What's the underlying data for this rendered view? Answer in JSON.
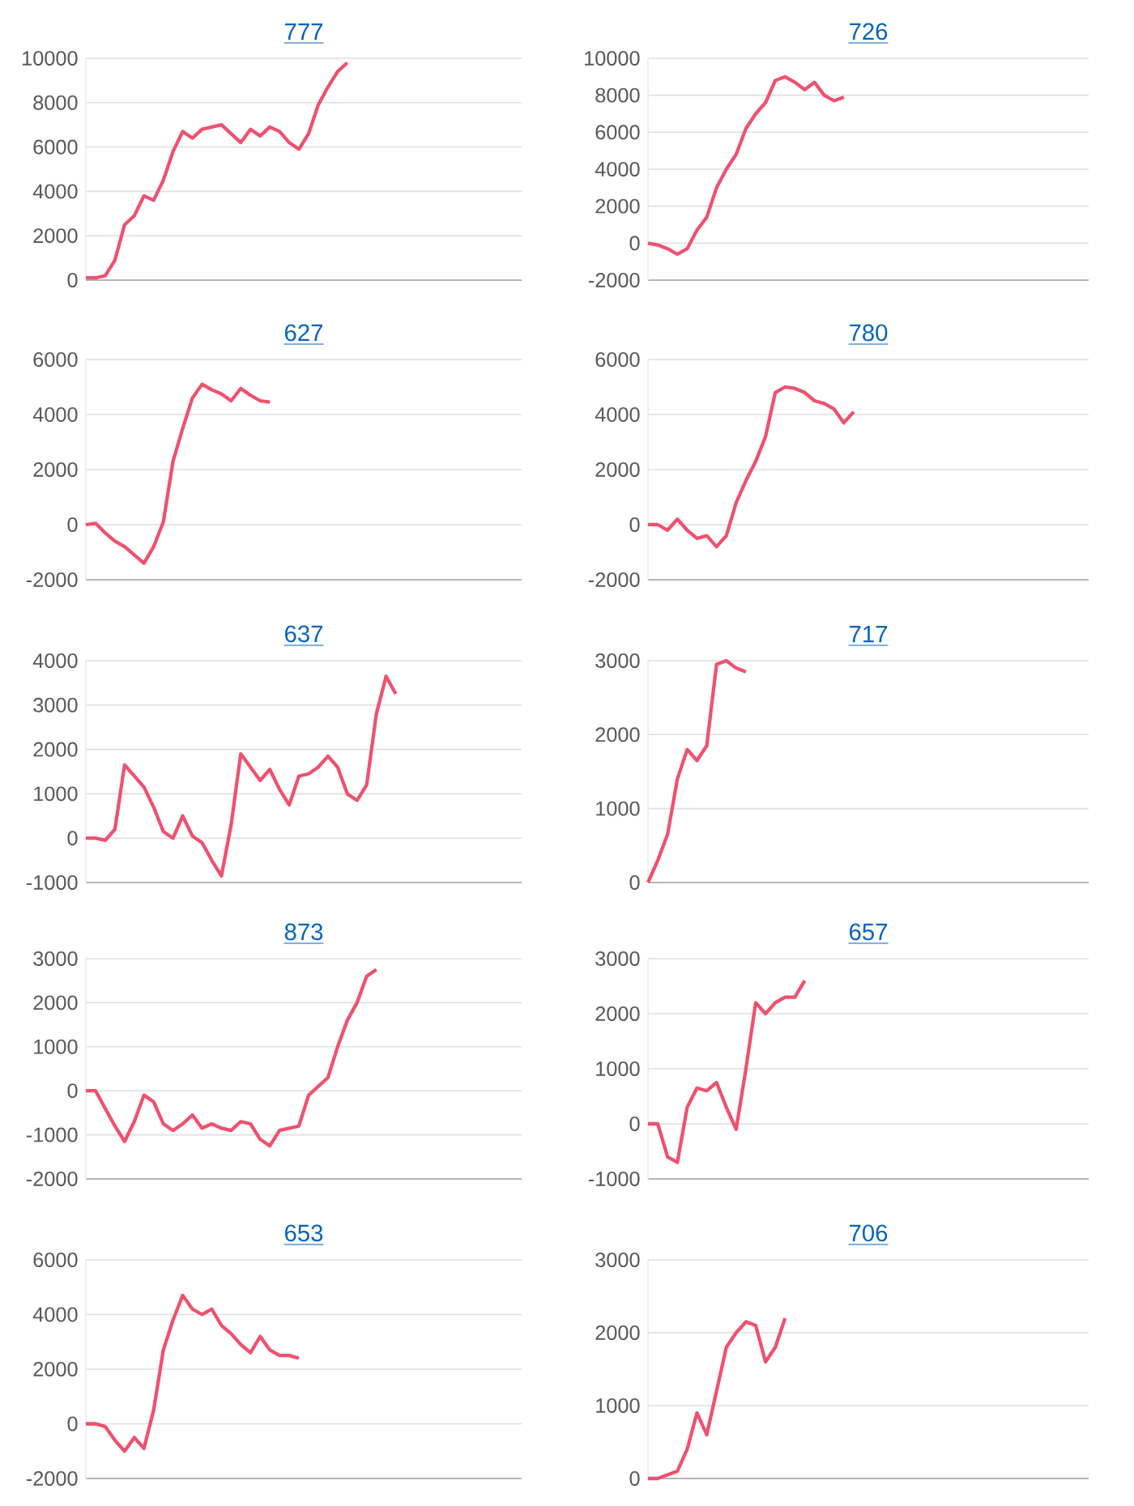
{
  "chart_data": [
    {
      "type": "line",
      "title": "777",
      "color": "#f0506e",
      "grid": "y",
      "tick_labels": "y",
      "ylim": [
        0,
        10000
      ],
      "yticks": [
        0,
        2000,
        4000,
        6000,
        8000,
        10000
      ],
      "categories": [
        null,
        null,
        null,
        null,
        null,
        null,
        null,
        null,
        null,
        null,
        null,
        null,
        null,
        null,
        null,
        null,
        null,
        null,
        null,
        null,
        null,
        null,
        null,
        null,
        null,
        null,
        null,
        null,
        null,
        null,
        null,
        null,
        null,
        null,
        null,
        null,
        null,
        null,
        null,
        null,
        null,
        null,
        null,
        null,
        null,
        null
      ],
      "values": [
        100,
        100,
        200,
        900,
        2500,
        2900,
        3800,
        3600,
        4500,
        5800,
        6700,
        6400,
        6800,
        6900,
        7000,
        6600,
        6200,
        6800,
        6500,
        6900,
        6700,
        6200,
        5900,
        6600,
        7900,
        8700,
        9400,
        9800,
        null,
        null,
        null,
        null,
        null,
        null,
        null,
        null,
        null,
        null,
        null,
        null,
        null,
        null,
        null,
        null,
        null,
        null
      ]
    },
    {
      "type": "line",
      "title": "726",
      "color": "#f0506e",
      "grid": "y",
      "tick_labels": "y",
      "ylim": [
        -2000,
        10000
      ],
      "yticks": [
        -2000,
        0,
        2000,
        4000,
        6000,
        8000,
        10000
      ],
      "categories": [
        null,
        null,
        null,
        null,
        null,
        null,
        null,
        null,
        null,
        null,
        null,
        null,
        null,
        null,
        null,
        null,
        null,
        null,
        null,
        null,
        null,
        null,
        null,
        null,
        null,
        null,
        null,
        null,
        null,
        null,
        null,
        null,
        null,
        null,
        null,
        null,
        null,
        null,
        null,
        null,
        null,
        null,
        null,
        null,
        null,
        null
      ],
      "values": [
        0,
        -100,
        -300,
        -600,
        -300,
        700,
        1400,
        3000,
        4000,
        4800,
        6200,
        7000,
        7600,
        8800,
        9000,
        8700,
        8300,
        8700,
        8000,
        7700,
        7900,
        null,
        null,
        null,
        null,
        null,
        null,
        null,
        null,
        null,
        null,
        null,
        null,
        null,
        null,
        null,
        null,
        null,
        null,
        null,
        null,
        null,
        null,
        null,
        null,
        null
      ]
    },
    {
      "type": "line",
      "title": "627",
      "color": "#f0506e",
      "grid": "y",
      "tick_labels": "y",
      "ylim": [
        -2000,
        6000
      ],
      "yticks": [
        -2000,
        0,
        2000,
        4000,
        6000
      ],
      "categories": [
        null,
        null,
        null,
        null,
        null,
        null,
        null,
        null,
        null,
        null,
        null,
        null,
        null,
        null,
        null,
        null,
        null,
        null,
        null,
        null,
        null,
        null,
        null,
        null,
        null,
        null,
        null,
        null,
        null,
        null,
        null,
        null,
        null,
        null,
        null,
        null,
        null,
        null,
        null,
        null,
        null,
        null,
        null,
        null,
        null,
        null
      ],
      "values": [
        0,
        50,
        -300,
        -600,
        -800,
        -1100,
        -1400,
        -800,
        100,
        2300,
        3500,
        4600,
        5100,
        4900,
        4750,
        4500,
        4950,
        4700,
        4500,
        4450,
        null,
        null,
        null,
        null,
        null,
        null,
        null,
        null,
        null,
        null,
        null,
        null,
        null,
        null,
        null,
        null,
        null,
        null,
        null,
        null,
        null,
        null,
        null,
        null,
        null,
        null
      ]
    },
    {
      "type": "line",
      "title": "780",
      "color": "#f0506e",
      "grid": "y",
      "tick_labels": "y",
      "ylim": [
        -2000,
        6000
      ],
      "yticks": [
        -2000,
        0,
        2000,
        4000,
        6000
      ],
      "categories": [
        null,
        null,
        null,
        null,
        null,
        null,
        null,
        null,
        null,
        null,
        null,
        null,
        null,
        null,
        null,
        null,
        null,
        null,
        null,
        null,
        null,
        null,
        null,
        null,
        null,
        null,
        null,
        null,
        null,
        null,
        null,
        null,
        null,
        null,
        null,
        null,
        null,
        null,
        null,
        null,
        null,
        null,
        null,
        null,
        null,
        null
      ],
      "values": [
        0,
        0,
        -200,
        200,
        -200,
        -500,
        -400,
        -800,
        -400,
        800,
        1600,
        2300,
        3200,
        4800,
        5000,
        4950,
        4800,
        4500,
        4400,
        4200,
        3700,
        4100,
        null,
        null,
        null,
        null,
        null,
        null,
        null,
        null,
        null,
        null,
        null,
        null,
        null,
        null,
        null,
        null,
        null,
        null,
        null,
        null,
        null,
        null,
        null,
        null
      ]
    },
    {
      "type": "line",
      "title": "637",
      "color": "#f0506e",
      "grid": "y",
      "tick_labels": "y",
      "ylim": [
        -1000,
        4000
      ],
      "yticks": [
        -1000,
        0,
        1000,
        2000,
        3000,
        4000
      ],
      "categories": [
        null,
        null,
        null,
        null,
        null,
        null,
        null,
        null,
        null,
        null,
        null,
        null,
        null,
        null,
        null,
        null,
        null,
        null,
        null,
        null,
        null,
        null,
        null,
        null,
        null,
        null,
        null,
        null,
        null,
        null,
        null,
        null,
        null,
        null,
        null,
        null,
        null,
        null,
        null,
        null,
        null,
        null,
        null,
        null,
        null,
        null
      ],
      "values": [
        0,
        0,
        -50,
        200,
        1650,
        1400,
        1150,
        700,
        150,
        0,
        500,
        50,
        -100,
        -500,
        -850,
        300,
        1900,
        1600,
        1300,
        1550,
        1100,
        750,
        1400,
        1450,
        1600,
        1850,
        1600,
        1000,
        850,
        1200,
        2800,
        3650,
        3250,
        null,
        null,
        null,
        null,
        null,
        null,
        null,
        null,
        null,
        null,
        null,
        null,
        null
      ]
    },
    {
      "type": "line",
      "title": "717",
      "color": "#f0506e",
      "grid": "y",
      "tick_labels": "y",
      "ylim": [
        0,
        3000
      ],
      "yticks": [
        0,
        1000,
        2000,
        3000
      ],
      "categories": [
        null,
        null,
        null,
        null,
        null,
        null,
        null,
        null,
        null,
        null,
        null,
        null,
        null,
        null,
        null,
        null,
        null,
        null,
        null,
        null,
        null,
        null,
        null,
        null,
        null,
        null,
        null,
        null,
        null,
        null,
        null,
        null,
        null,
        null,
        null,
        null,
        null,
        null,
        null,
        null,
        null,
        null,
        null,
        null,
        null,
        null
      ],
      "values": [
        0,
        300,
        650,
        1400,
        1800,
        1650,
        1850,
        2950,
        3000,
        2900,
        2850,
        null,
        null,
        null,
        null,
        null,
        null,
        null,
        null,
        null,
        null,
        null,
        null,
        null,
        null,
        null,
        null,
        null,
        null,
        null,
        null,
        null,
        null,
        null,
        null,
        null,
        null,
        null,
        null,
        null,
        null,
        null,
        null,
        null,
        null,
        null
      ]
    },
    {
      "type": "line",
      "title": "873",
      "color": "#f0506e",
      "grid": "y",
      "tick_labels": "y",
      "ylim": [
        -2000,
        3000
      ],
      "yticks": [
        -2000,
        -1000,
        0,
        1000,
        2000,
        3000
      ],
      "categories": [
        null,
        null,
        null,
        null,
        null,
        null,
        null,
        null,
        null,
        null,
        null,
        null,
        null,
        null,
        null,
        null,
        null,
        null,
        null,
        null,
        null,
        null,
        null,
        null,
        null,
        null,
        null,
        null,
        null,
        null,
        null,
        null,
        null,
        null,
        null,
        null,
        null,
        null,
        null,
        null,
        null,
        null,
        null,
        null,
        null,
        null
      ],
      "values": [
        0,
        0,
        -400,
        -800,
        -1150,
        -700,
        -100,
        -250,
        -750,
        -900,
        -750,
        -550,
        -850,
        -750,
        -850,
        -900,
        -700,
        -750,
        -1100,
        -1250,
        -900,
        -850,
        -800,
        -100,
        100,
        300,
        1000,
        1600,
        2000,
        2600,
        2750,
        null,
        null,
        null,
        null,
        null,
        null,
        null,
        null,
        null,
        null,
        null,
        null,
        null,
        null,
        null
      ]
    },
    {
      "type": "line",
      "title": "657",
      "color": "#f0506e",
      "grid": "y",
      "tick_labels": "y",
      "ylim": [
        -1000,
        3000
      ],
      "yticks": [
        -1000,
        0,
        1000,
        2000,
        3000
      ],
      "categories": [
        null,
        null,
        null,
        null,
        null,
        null,
        null,
        null,
        null,
        null,
        null,
        null,
        null,
        null,
        null,
        null,
        null,
        null,
        null,
        null,
        null,
        null,
        null,
        null,
        null,
        null,
        null,
        null,
        null,
        null,
        null,
        null,
        null,
        null,
        null,
        null,
        null,
        null,
        null,
        null,
        null,
        null,
        null,
        null,
        null,
        null
      ],
      "values": [
        0,
        0,
        -600,
        -700,
        300,
        650,
        600,
        750,
        300,
        -100,
        1000,
        2200,
        2000,
        2200,
        2300,
        2300,
        2600,
        null,
        null,
        null,
        null,
        null,
        null,
        null,
        null,
        null,
        null,
        null,
        null,
        null,
        null,
        null,
        null,
        null,
        null,
        null,
        null,
        null,
        null,
        null,
        null,
        null,
        null,
        null,
        null,
        null
      ]
    },
    {
      "type": "line",
      "title": "653",
      "color": "#f0506e",
      "grid": "y",
      "tick_labels": "y",
      "ylim": [
        -2000,
        6000
      ],
      "yticks": [
        -2000,
        0,
        2000,
        4000,
        6000
      ],
      "categories": [
        null,
        null,
        null,
        null,
        null,
        null,
        null,
        null,
        null,
        null,
        null,
        null,
        null,
        null,
        null,
        null,
        null,
        null,
        null,
        null,
        null,
        null,
        null,
        null,
        null,
        null,
        null,
        null,
        null,
        null,
        null,
        null,
        null,
        null,
        null,
        null,
        null,
        null,
        null,
        null,
        null,
        null,
        null,
        null,
        null,
        null
      ],
      "values": [
        0,
        0,
        -100,
        -600,
        -1000,
        -500,
        -900,
        500,
        2700,
        3800,
        4700,
        4200,
        4000,
        4200,
        3600,
        3300,
        2900,
        2600,
        3200,
        2700,
        2500,
        2500,
        2400,
        null,
        null,
        null,
        null,
        null,
        null,
        null,
        null,
        null,
        null,
        null,
        null,
        null,
        null,
        null,
        null,
        null,
        null,
        null,
        null,
        null,
        null,
        null
      ]
    },
    {
      "type": "line",
      "title": "706",
      "color": "#f0506e",
      "grid": "y",
      "tick_labels": "y",
      "ylim": [
        0,
        3000
      ],
      "yticks": [
        0,
        1000,
        2000,
        3000
      ],
      "categories": [
        null,
        null,
        null,
        null,
        null,
        null,
        null,
        null,
        null,
        null,
        null,
        null,
        null,
        null,
        null,
        null,
        null,
        null,
        null,
        null,
        null,
        null,
        null,
        null,
        null,
        null,
        null,
        null,
        null,
        null,
        null,
        null,
        null,
        null,
        null,
        null,
        null,
        null,
        null,
        null,
        null,
        null,
        null,
        null,
        null,
        null
      ],
      "values": [
        0,
        0,
        50,
        100,
        400,
        900,
        600,
        1200,
        1800,
        2000,
        2150,
        2100,
        1600,
        1800,
        2200,
        null,
        null,
        null,
        null,
        null,
        null,
        null,
        null,
        null,
        null,
        null,
        null,
        null,
        null,
        null,
        null,
        null,
        null,
        null,
        null,
        null,
        null,
        null,
        null,
        null,
        null,
        null,
        null,
        null,
        null,
        null
      ]
    }
  ]
}
